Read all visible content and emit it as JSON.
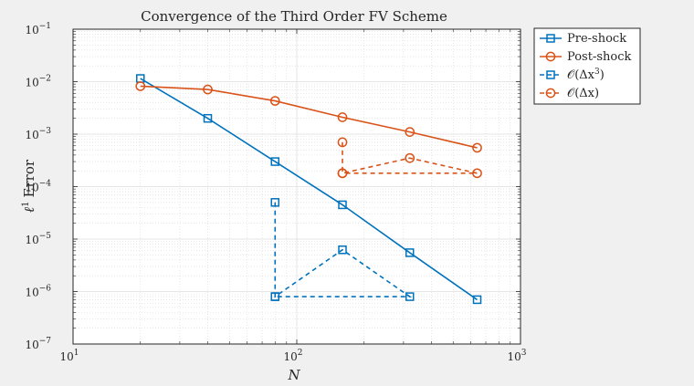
{
  "chart_data": {
    "type": "line",
    "title": "Convergence of the Third Order FV Scheme",
    "xlabel": "N",
    "ylabel_sym": "ℓ",
    "ylabel_sup": "1",
    "ylabel_text": "Error",
    "xscale": "log",
    "yscale": "log",
    "xlim": [
      10,
      1000
    ],
    "ylim": [
      1e-07,
      0.1
    ],
    "x_ticks": [
      {
        "base": "10",
        "exp": "1",
        "value": 10
      },
      {
        "base": "10",
        "exp": "2",
        "value": 100
      },
      {
        "base": "10",
        "exp": "3",
        "value": 1000
      }
    ],
    "y_ticks": [
      {
        "base": "10",
        "exp": "−7",
        "value": 1e-07
      },
      {
        "base": "10",
        "exp": "−6",
        "value": 1e-06
      },
      {
        "base": "10",
        "exp": "−5",
        "value": 1e-05
      },
      {
        "base": "10",
        "exp": "−4",
        "value": 0.0001
      },
      {
        "base": "10",
        "exp": "−3",
        "value": 0.001
      },
      {
        "base": "10",
        "exp": "−2",
        "value": 0.01
      },
      {
        "base": "10",
        "exp": "−1",
        "value": 0.1
      }
    ],
    "grid": true,
    "minor_grid": true,
    "legend_position": "outside-top-right",
    "series": [
      {
        "name": "Pre-shock",
        "color": "#0072bd",
        "marker": "square",
        "dashed": false,
        "x": [
          20,
          40,
          80,
          160,
          320,
          640
        ],
        "y": [
          0.0115,
          0.002,
          0.0003,
          4.5e-05,
          5.5e-06,
          7e-07
        ]
      },
      {
        "name": "Post-shock",
        "color": "#d95319",
        "marker": "circle",
        "dashed": false,
        "x": [
          20,
          40,
          80,
          160,
          320,
          640
        ],
        "y": [
          0.0082,
          0.0071,
          0.0043,
          0.0021,
          0.0011,
          0.00055
        ]
      },
      {
        "name_prefix": "𝒪(Δx",
        "name_sup": "3",
        "name_suffix": ")",
        "color": "#0072bd",
        "marker": "square",
        "dashed": true,
        "x": [
          80,
          80,
          160,
          320,
          80
        ],
        "y": [
          5e-05,
          8e-07,
          6.25e-06,
          8e-07,
          8e-07
        ]
      },
      {
        "name": "𝒪(Δx)",
        "color": "#d95319",
        "marker": "circle",
        "dashed": true,
        "x": [
          160,
          160,
          320,
          640,
          160
        ],
        "y": [
          0.0007,
          0.00018,
          0.00035,
          0.00018,
          0.00018
        ]
      }
    ]
  }
}
